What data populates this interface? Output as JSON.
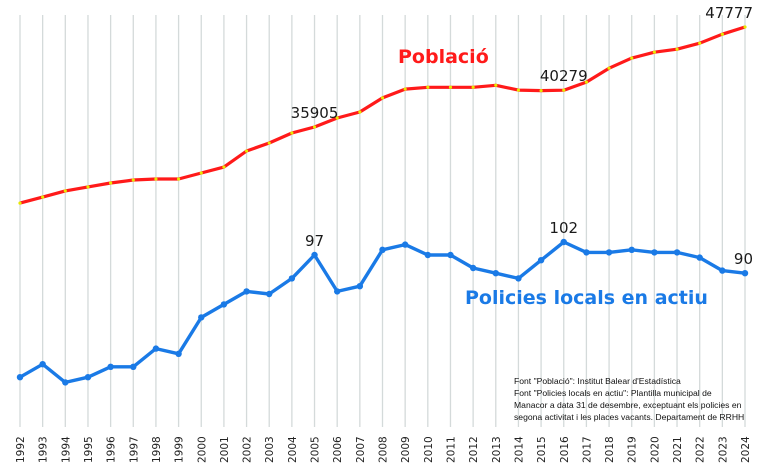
{
  "chart_data": {
    "type": "line",
    "title": "",
    "xlabel": "",
    "ylabel": "",
    "x": [
      "1992",
      "1993",
      "1994",
      "1995",
      "1996",
      "1997",
      "1998",
      "1999",
      "2000",
      "2001",
      "2002",
      "2003",
      "2004",
      "2005",
      "2006",
      "2007",
      "2008",
      "2009",
      "2010",
      "2011",
      "2012",
      "2013",
      "2014",
      "2015",
      "2016",
      "2017",
      "2018",
      "2019",
      "2020",
      "2021",
      "2022",
      "2023",
      "2024"
    ],
    "grid": "vertical",
    "series": [
      {
        "name": "Població",
        "color": "#ff1a1a",
        "marker_color": "#e8e800",
        "values": [
          26870,
          27580,
          28320,
          28790,
          29260,
          29610,
          29730,
          29730,
          30440,
          31150,
          33050,
          34000,
          35190,
          35905,
          36970,
          37690,
          39360,
          40410,
          40620,
          40620,
          40620,
          40860,
          40280,
          40230,
          40279,
          41230,
          42890,
          44080,
          44790,
          45140,
          45850,
          46920,
          47777
        ],
        "labels": [
          {
            "year": "2005",
            "text": "35905"
          },
          {
            "year": "2016",
            "text": "40279"
          },
          {
            "year": "2024",
            "text": "47777"
          }
        ]
      },
      {
        "name": "Policies locals en actiu",
        "color": "#1a7ae6",
        "marker_color": "#1a7ae6",
        "values": [
          50,
          55,
          48,
          50,
          54,
          54,
          61,
          59,
          73,
          78,
          83,
          82,
          88,
          97,
          83,
          85,
          99,
          101,
          97,
          97,
          92,
          90,
          88,
          95,
          102,
          98,
          98,
          99,
          98,
          98,
          96,
          91,
          90
        ],
        "labels": [
          {
            "year": "2005",
            "text": "97"
          },
          {
            "year": "2016",
            "text": "102"
          },
          {
            "year": "2024",
            "text": "90"
          }
        ]
      }
    ],
    "annotations": {
      "poblacio_title": "Població",
      "policies_title": "Policies locals en actiu",
      "source_lines": [
        "Font \"Població\": Institut Balear d'Estadística",
        "Font \"Policies locals en actiu\": Plantilla municipal de",
        "Manacor a data 31 de desembre, exceptuant els policies en",
        "segona activitat i les places vacants. Departament de RRHH"
      ]
    }
  }
}
